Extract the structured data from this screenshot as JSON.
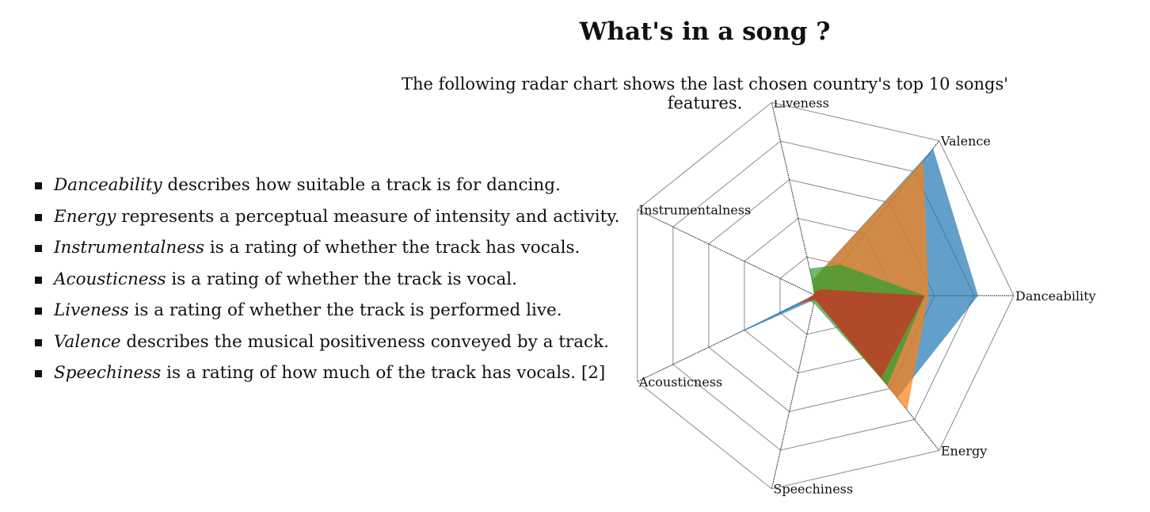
{
  "header": {
    "title": "What's in a song ?",
    "subtitle": "The following radar chart shows the last chosen country's top 10 songs' features."
  },
  "features_list": {
    "items": [
      {
        "term": "Danceability",
        "text": " describes how suitable a track is for dancing."
      },
      {
        "term": "Energy",
        "text": " represents a perceptual measure of intensity and activity."
      },
      {
        "term": "Instrumentalness",
        "text": " is a rating of whether the track has vocals."
      },
      {
        "term": "Acousticness",
        "text": " is a rating of whether the track is vocal."
      },
      {
        "term": "Liveness",
        "text": " is a rating of whether the track is performed live."
      },
      {
        "term": "Valence",
        "text": " describes the musical positiveness conveyed by a track."
      },
      {
        "term": "Speechiness",
        "text": " is a rating of how much of the track has vocals. [2]"
      }
    ]
  },
  "chart_data": {
    "type": "radar",
    "title": "",
    "axes": [
      "Danceability",
      "Energy",
      "Speechiness",
      "Acousticness",
      "Instrumentalness",
      "Liveness",
      "Valence"
    ],
    "range": [
      0,
      1
    ],
    "grid_levels": 5,
    "grid": true,
    "legend": "none",
    "series": [
      {
        "color": "#1f77b4",
        "values": [
          0.82,
          0.66,
          0.02,
          0.5,
          0.01,
          0.08,
          0.95
        ]
      },
      {
        "color": "#ff7f0e",
        "values": [
          0.57,
          0.74,
          0.02,
          0.1,
          0.01,
          0.08,
          0.87
        ]
      },
      {
        "color": "#2ca02c",
        "values": [
          0.55,
          0.58,
          0.04,
          0.05,
          0.01,
          0.14,
          0.2
        ]
      },
      {
        "color": "#d62728",
        "values": [
          0.55,
          0.53,
          0.02,
          0.1,
          0.01,
          0.02,
          0.04
        ]
      }
    ]
  }
}
